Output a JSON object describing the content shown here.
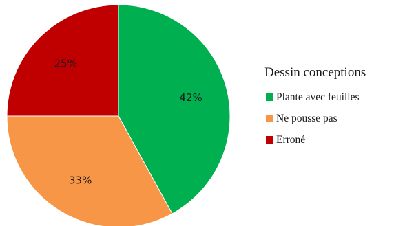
{
  "chart_data": {
    "type": "pie",
    "legend_title": "Dessin conceptions",
    "legend_position": "right",
    "start_angle": "top",
    "direction": "clockwise",
    "slices": [
      {
        "label": "Plante avec feuilles",
        "value": 42,
        "display": "42%",
        "color": "#00b050"
      },
      {
        "label": "Ne pousse pas",
        "value": 33,
        "display": "33%",
        "color": "#f79646"
      },
      {
        "label": "Erroné",
        "value": 25,
        "display": "25%",
        "color": "#c00000"
      }
    ]
  }
}
